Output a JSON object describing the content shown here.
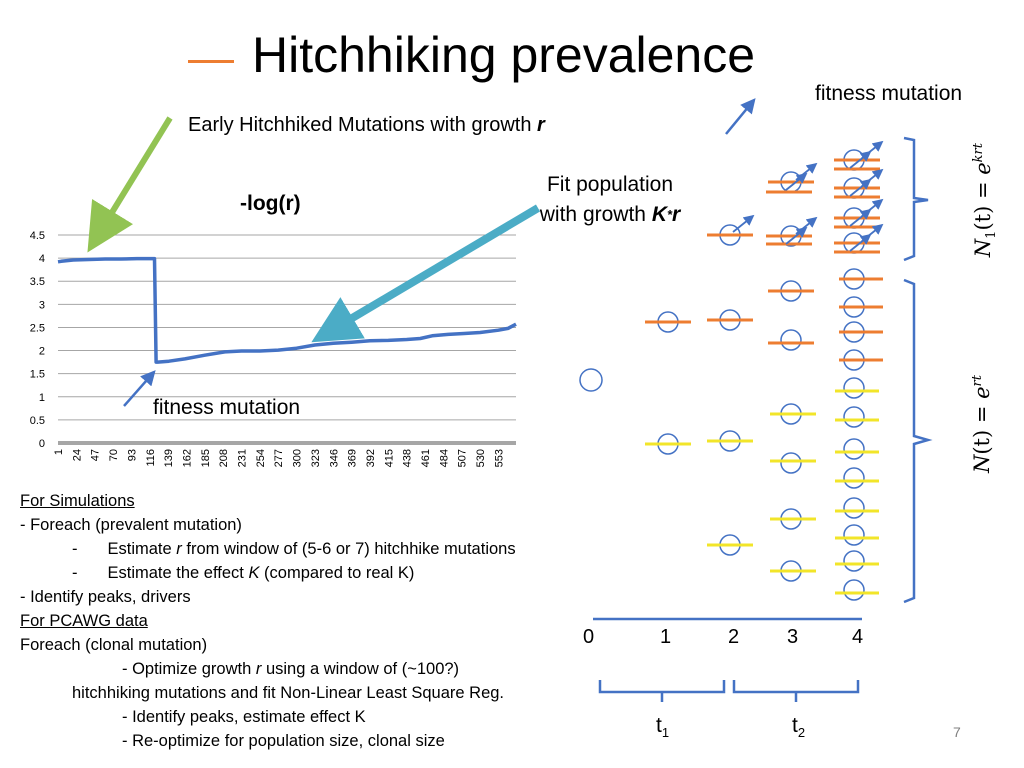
{
  "slide": {
    "title": "Hitchhiking prevalence",
    "fitness_mutation_top": "fitness mutation",
    "early_label_prefix": "Early Hitchhiked Mutations with growth ",
    "early_label_var": "r",
    "fit_population_line1": "Fit population",
    "fit_population_line2_prefix": "with growth ",
    "fit_population_var_k": "K",
    "fit_population_star": "*",
    "fit_population_var_r": "r",
    "fitness_mutation_chart": "fitness mutation",
    "page_number": "7",
    "colors": {
      "accent_orange": "#ED7D31",
      "line_blue": "#4472C4",
      "arrow_green": "#92C353",
      "arrow_teal": "#4BACC6",
      "yellow": "#F2E529"
    }
  },
  "notes": {
    "for_simulations": "For Simulations",
    "sim_foreach": "- Foreach (prevalent mutation)",
    "sim_est_r_prefix": "Estimate ",
    "sim_est_r_var": "r",
    "sim_est_r_suffix": " from window of (5-6 or 7) hitchhike mutations",
    "sim_est_k_prefix": "Estimate the effect ",
    "sim_est_k_var": "K",
    "sim_est_k_suffix": " (compared to real K)",
    "sim_peaks": "- Identify peaks, drivers",
    "for_pcawg": "For PCAWG data",
    "pcawg_foreach": "Foreach (clonal mutation)",
    "pcawg_optimize_prefix": "- Optimize growth ",
    "pcawg_optimize_var": "r",
    "pcawg_optimize_suffix": " using a window of (~100?)",
    "pcawg_hitchhiking": "hitchhiking mutations and fit Non-Linear Least Square Reg.",
    "pcawg_peaks": "- Identify peaks, estimate effect K",
    "pcawg_reopt": "- Re-optimize for population size, clonal size"
  },
  "diagram": {
    "time_labels": [
      "0",
      "1",
      "2",
      "3",
      "4"
    ],
    "t1_label": "t",
    "t1_sub": "1",
    "t2_label": "t",
    "t2_sub": "2",
    "eq_top": "N1(t) = e^krt",
    "eq_top_parts": [
      "N",
      "1",
      "(t) = ",
      "e",
      "krt"
    ],
    "eq_bottom": "N(t) = e^rt",
    "eq_bottom_parts": [
      "N",
      "(t) = ",
      "e",
      "rt"
    ]
  },
  "chart_data": {
    "type": "line",
    "title": "-log(r)",
    "xlabel": "",
    "ylabel": "",
    "ylim": [
      0,
      4.5
    ],
    "yticks": [
      "0",
      "0.5",
      "1",
      "1.5",
      "2",
      "2.5",
      "3",
      "3.5",
      "4",
      "4.5"
    ],
    "x_tick_labels": [
      "1",
      "24",
      "47",
      "70",
      "93",
      "116",
      "139",
      "162",
      "185",
      "208",
      "231",
      "254",
      "277",
      "300",
      "323",
      "346",
      "369",
      "392",
      "415",
      "438",
      "461",
      "484",
      "507",
      "530",
      "553"
    ],
    "x_range": [
      1,
      575
    ],
    "grid": true,
    "series": [
      {
        "x": [
          1,
          5,
          20,
          40,
          60,
          80,
          100,
          115,
          122,
          124,
          126,
          140,
          160,
          185,
          210,
          231,
          254,
          277,
          300,
          323,
          346,
          369,
          392,
          415,
          438,
          455,
          470,
          490,
          510,
          530,
          553,
          565,
          575
        ],
        "values": [
          3.92,
          3.93,
          3.96,
          3.97,
          3.98,
          3.98,
          3.99,
          3.99,
          3.99,
          1.75,
          1.75,
          1.77,
          1.82,
          1.9,
          1.97,
          1.99,
          1.99,
          2.01,
          2.05,
          2.12,
          2.16,
          2.18,
          2.21,
          2.22,
          2.24,
          2.26,
          2.32,
          2.35,
          2.37,
          2.39,
          2.44,
          2.48,
          2.57
        ]
      }
    ]
  }
}
